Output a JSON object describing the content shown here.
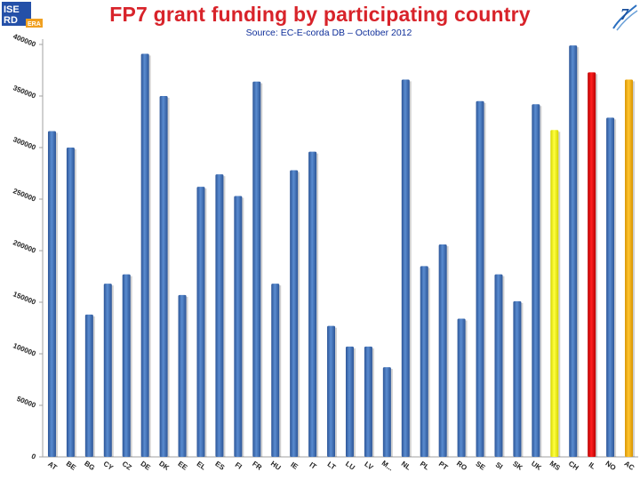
{
  "header": {
    "logo_left_text": [
      "ISE",
      "RD",
      "ERA"
    ],
    "logo_right_name": "fp7-logo"
  },
  "colors": {
    "default_bar": "#3d6db0",
    "highlight_bars": {
      "MS": "#ffff00",
      "IL": "#e00000",
      "AC": "#f5b000"
    }
  },
  "chart_data": {
    "type": "bar",
    "title": "FP7 grant funding by participating country",
    "subtitle": "Source: EC-E-corda DB – October 2012",
    "categories": [
      "AT",
      "BE",
      "BG",
      "CY",
      "CZ",
      "DE",
      "DK",
      "EE",
      "EL",
      "ES",
      "FI",
      "FR",
      "HU",
      "IE",
      "IT",
      "LT",
      "LU",
      "LV",
      "M...",
      "NL",
      "PL",
      "PT",
      "RO",
      "SE",
      "SI",
      "SK",
      "UK",
      "MS",
      "CH",
      "IL",
      "NO",
      "AC"
    ],
    "values": [
      316000,
      300000,
      138000,
      168000,
      177000,
      391000,
      350000,
      157000,
      262000,
      274000,
      253000,
      364000,
      168000,
      278000,
      296000,
      127000,
      107000,
      107000,
      87000,
      366000,
      185000,
      206000,
      134000,
      345000,
      177000,
      151000,
      342000,
      317000,
      399000,
      373000,
      329000,
      366000
    ],
    "ylim": [
      0,
      400000
    ],
    "yticks": [
      0,
      50000,
      100000,
      150000,
      200000,
      250000,
      300000,
      350000,
      400000
    ],
    "xlabel": "",
    "ylabel": "",
    "grid": false,
    "legend": "none"
  }
}
